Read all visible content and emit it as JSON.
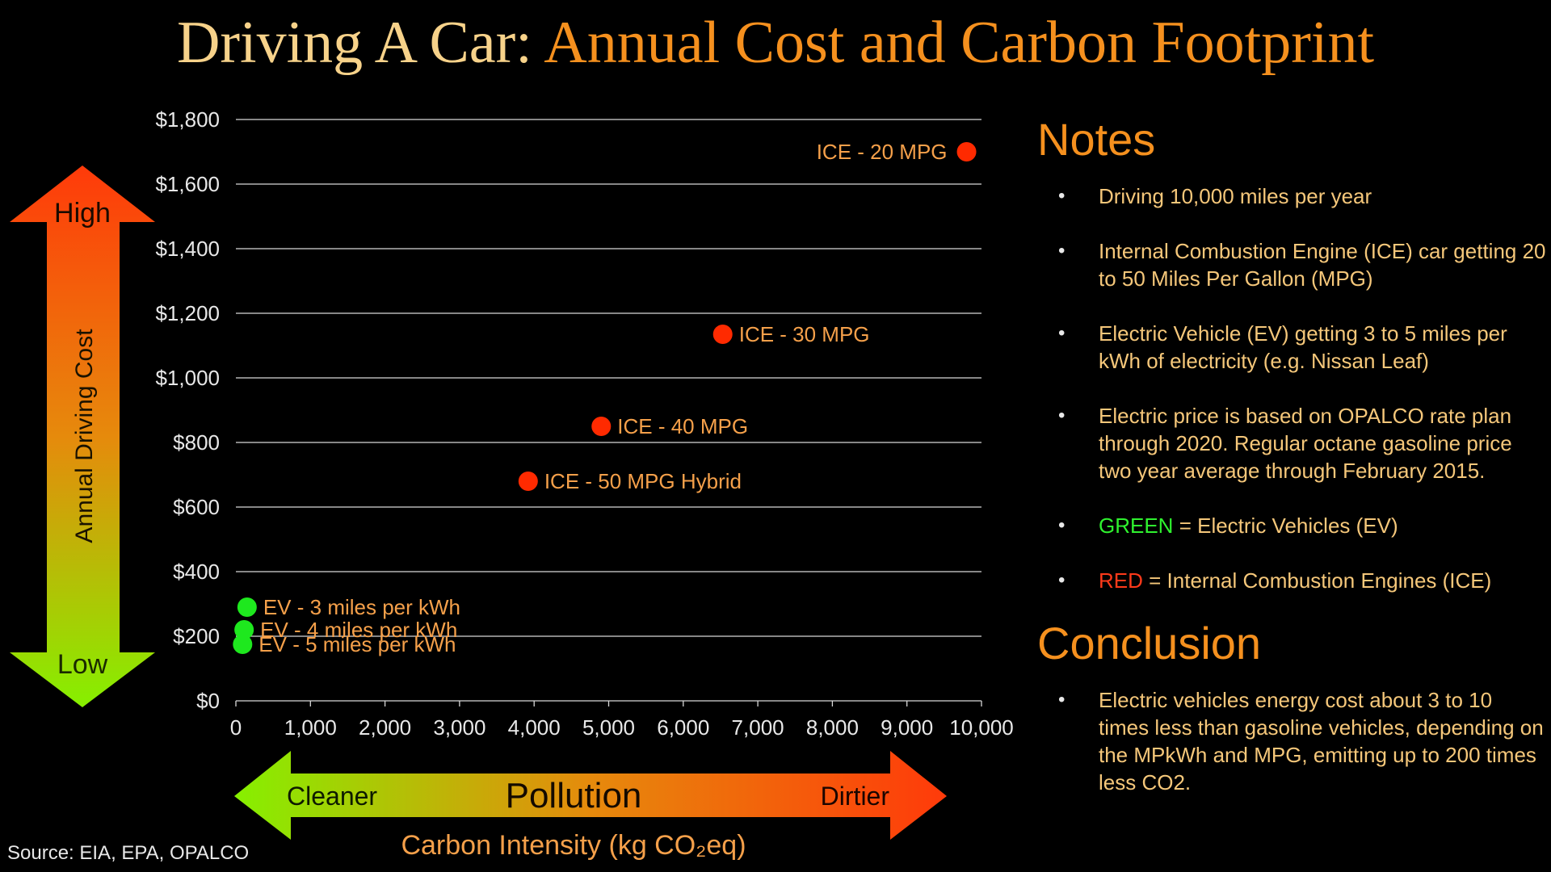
{
  "title": {
    "part1": "Driving A Car:",
    "part2": "Annual Cost and Carbon Footprint"
  },
  "chart_data": {
    "type": "scatter",
    "xlabel": "Carbon Intensity (kg CO₂eq)",
    "ylabel": "Annual Driving Cost",
    "xlim": [
      0,
      10000
    ],
    "ylim": [
      0,
      1800
    ],
    "x_ticks": [
      0,
      1000,
      2000,
      3000,
      4000,
      5000,
      6000,
      7000,
      8000,
      9000,
      10000
    ],
    "x_tick_labels": [
      "0",
      "1,000",
      "2,000",
      "3,000",
      "4,000",
      "5,000",
      "6,000",
      "7,000",
      "8,000",
      "9,000",
      "10,000"
    ],
    "y_ticks": [
      0,
      200,
      400,
      600,
      800,
      1000,
      1200,
      1400,
      1600,
      1800
    ],
    "y_tick_labels": [
      "$0",
      "$200",
      "$400",
      "$600",
      "$800",
      "$1,000",
      "$1,200",
      "$1,400",
      "$1,600",
      "$1,800"
    ],
    "grid": "horizontal",
    "points": [
      {
        "label": "ICE - 20 MPG",
        "x": 9800,
        "y": 1700,
        "group": "ICE",
        "label_side": "left"
      },
      {
        "label": "ICE - 30 MPG",
        "x": 6530,
        "y": 1135,
        "group": "ICE",
        "label_side": "right"
      },
      {
        "label": "ICE - 40 MPG",
        "x": 4900,
        "y": 850,
        "group": "ICE",
        "label_side": "right"
      },
      {
        "label": "ICE - 50 MPG Hybrid",
        "x": 3920,
        "y": 680,
        "group": "ICE",
        "label_side": "right"
      },
      {
        "label": "EV - 3 miles per kWh",
        "x": 150,
        "y": 290,
        "group": "EV",
        "label_side": "right"
      },
      {
        "label": "EV - 4 miles per kWh",
        "x": 110,
        "y": 220,
        "group": "EV",
        "label_side": "right"
      },
      {
        "label": "EV - 5 miles per kWh",
        "x": 90,
        "y": 175,
        "group": "EV",
        "label_side": "right"
      }
    ],
    "colors": {
      "ICE": "#ff2a00",
      "EV": "#1ee81e",
      "label": "#f5a04a",
      "axis_text": "#e8e8e8",
      "grid": "#d8d8d8"
    },
    "y_arrow": {
      "high": "High",
      "low": "Low",
      "label": "Annual Driving Cost"
    },
    "x_arrow": {
      "left": "Cleaner",
      "center": "Pollution",
      "right": "Dirtier"
    }
  },
  "source": "Source: EIA, EPA, OPALCO",
  "notes": {
    "heading": "Notes",
    "items": [
      {
        "text": "Driving 10,000 miles per year"
      },
      {
        "text": "Internal Combustion Engine (ICE) car getting 20 to 50 Miles Per Gallon (MPG)"
      },
      {
        "text": "Electric Vehicle (EV) getting 3 to 5 miles per kWh of electricity (e.g. Nissan Leaf)"
      },
      {
        "text": "Electric price is based on OPALCO rate plan through 2020.  Regular octane gasoline price two year average through February 2015."
      },
      {
        "keyword": "GREEN",
        "text": " = Electric Vehicles (EV)"
      },
      {
        "keyword": "RED",
        "text": " = Internal Combustion Engines (ICE)"
      }
    ],
    "bullet": "•"
  },
  "conclusion": {
    "heading": "Conclusion",
    "items": [
      {
        "text": "Electric vehicles energy cost about 3 to 10 times less than gasoline vehicles, depending on the MPkWh and MPG, emitting up to 200 times less CO2."
      }
    ]
  }
}
